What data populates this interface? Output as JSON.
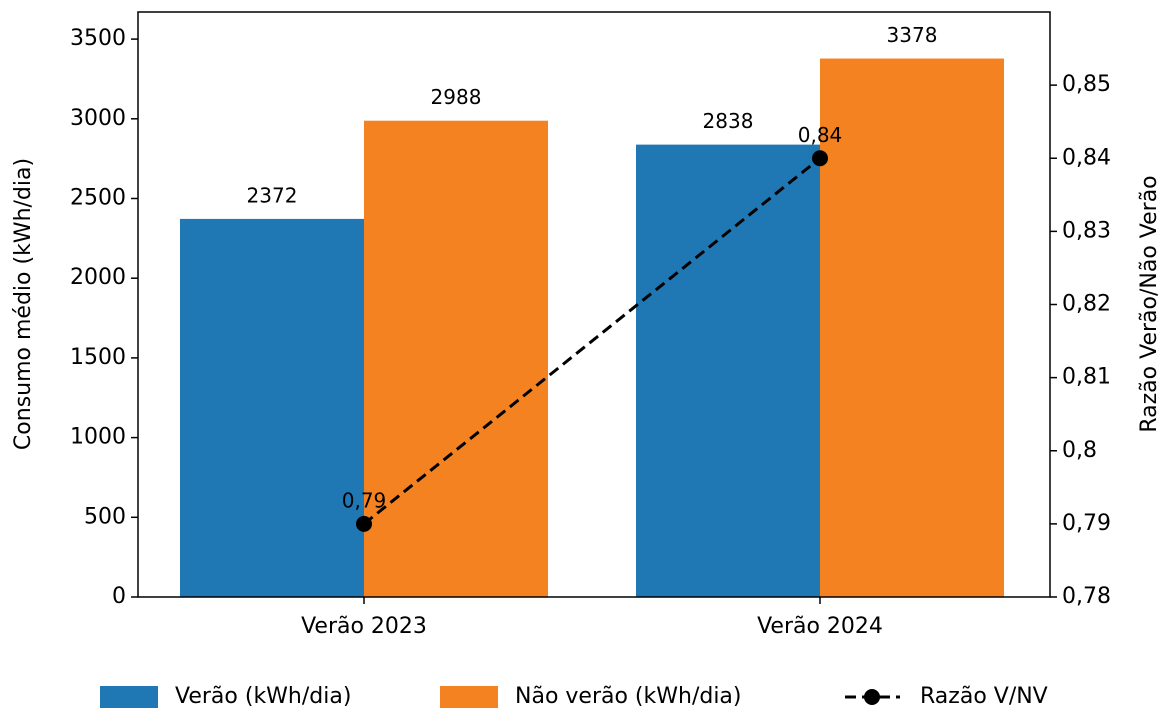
{
  "chart_data": {
    "type": "bar",
    "categories": [
      "Verão 2023",
      "Verão 2024"
    ],
    "series": [
      {
        "name": "Verão (kWh/dia)",
        "color": "#1f77b4",
        "values": [
          2372,
          2838
        ]
      },
      {
        "name": "Não verão (kWh/dia)",
        "color": "#f58220",
        "values": [
          2988,
          3378
        ]
      },
      {
        "name": "Razão V/NV",
        "type": "line",
        "axis": "y2",
        "color": "#000000",
        "values": [
          0.79,
          0.84
        ],
        "value_labels": [
          "0,79",
          "0,84"
        ]
      }
    ],
    "ylabel": "Consumo médio (kWh/dia)",
    "y2label": "Razão Verão/Não Verão",
    "ylim": [
      0,
      3670
    ],
    "yticks": [
      0,
      500,
      1000,
      1500,
      2000,
      2500,
      3000,
      3500
    ],
    "y2lim": [
      0.78,
      0.86
    ],
    "y2ticks": [
      {
        "value": 0.78,
        "label": "0,78"
      },
      {
        "value": 0.79,
        "label": "0,79"
      },
      {
        "value": 0.8,
        "label": "0,8"
      },
      {
        "value": 0.81,
        "label": "0,81"
      },
      {
        "value": 0.82,
        "label": "0,82"
      },
      {
        "value": 0.83,
        "label": "0,83"
      },
      {
        "value": 0.84,
        "label": "0,84"
      },
      {
        "value": 0.85,
        "label": "0,85"
      }
    ],
    "legend": "bottom"
  }
}
